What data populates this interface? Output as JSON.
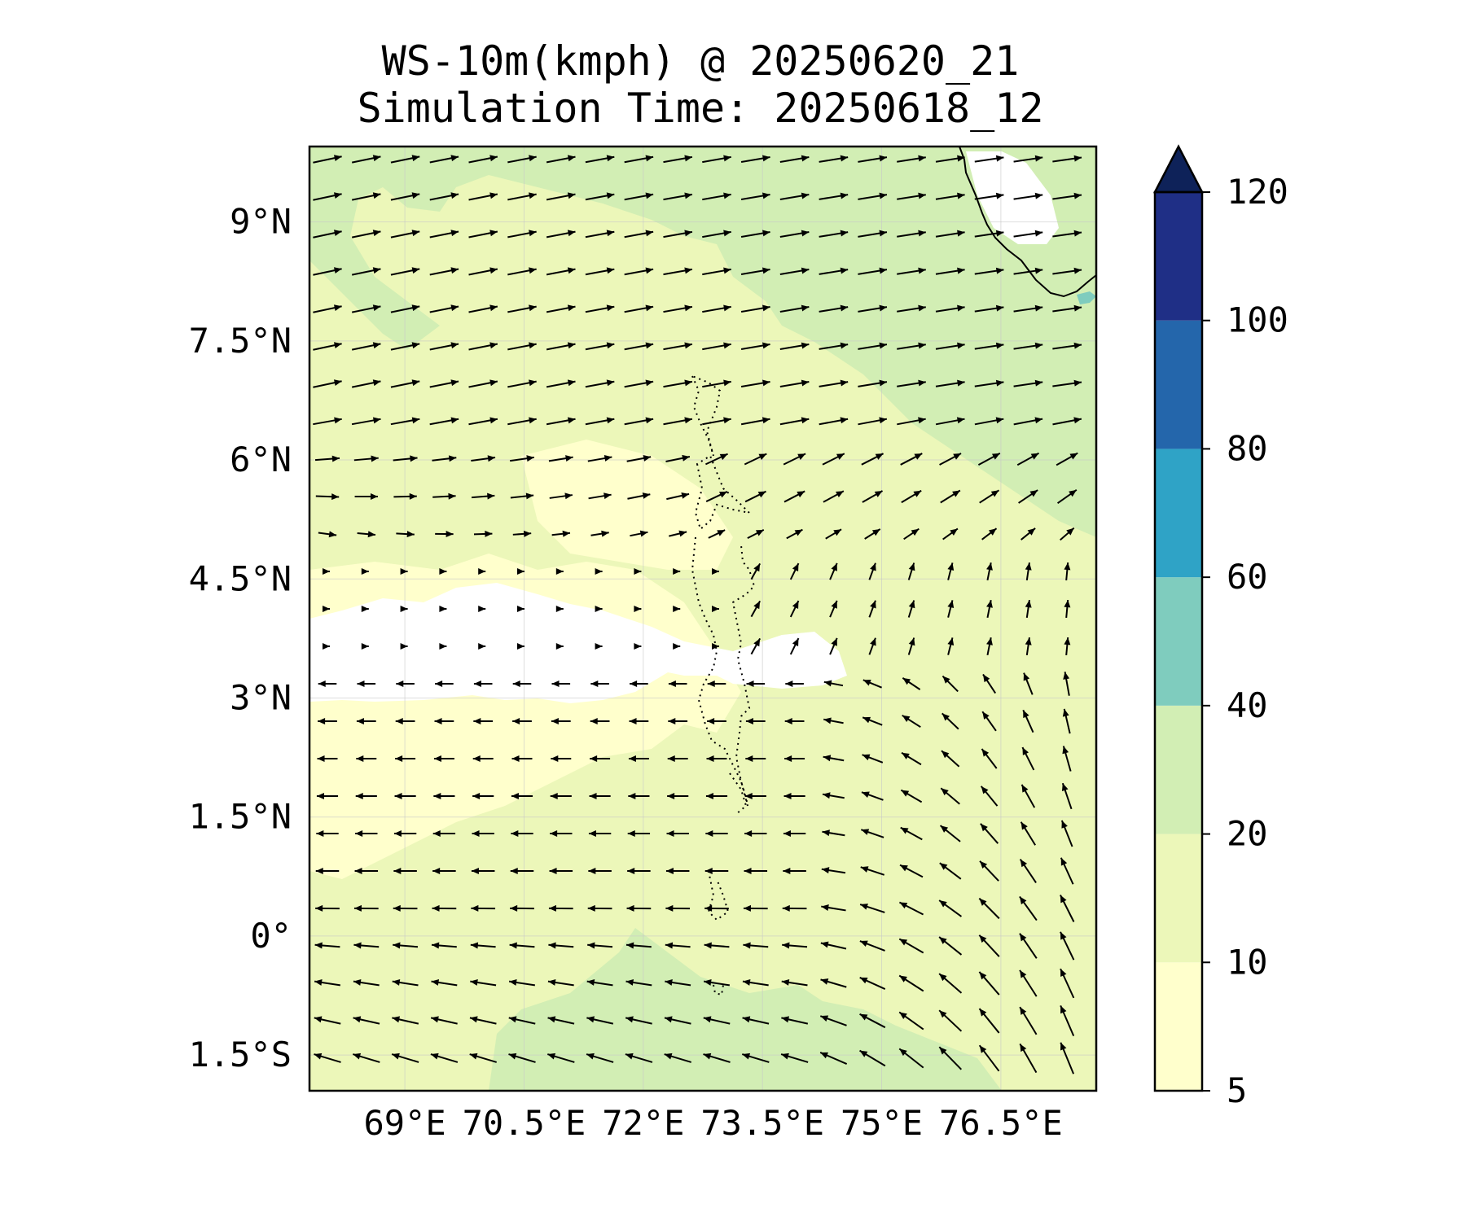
{
  "title": {
    "line1": "WS-10m(kmph) @ 20250620_21",
    "line2": "Simulation Time: 20250618_12"
  },
  "map": {
    "lon_range": [
      67.8,
      77.7
    ],
    "lat_range": [
      -1.95,
      9.95
    ],
    "lon_ticks": [
      {
        "value": 69.0,
        "label": "69°E"
      },
      {
        "value": 70.5,
        "label": "70.5°E"
      },
      {
        "value": 72.0,
        "label": "72°E"
      },
      {
        "value": 73.5,
        "label": "73.5°E"
      },
      {
        "value": 75.0,
        "label": "75°E"
      },
      {
        "value": 76.5,
        "label": "76.5°E"
      }
    ],
    "lat_ticks": [
      {
        "value": 9.0,
        "label": "9°N"
      },
      {
        "value": 7.5,
        "label": "7.5°N"
      },
      {
        "value": 6.0,
        "label": "6°N"
      },
      {
        "value": 4.5,
        "label": "4.5°N"
      },
      {
        "value": 3.0,
        "label": "3°N"
      },
      {
        "value": 1.5,
        "label": "1.5°N"
      },
      {
        "value": 0.0,
        "label": "0°"
      },
      {
        "value": -1.5,
        "label": "1.5°S"
      }
    ],
    "gridlines": true,
    "field_background": "#ecf7b9",
    "wind_field": {
      "cols": 20,
      "rows": 25,
      "description_regions": "westerly north of ~4.5°N, calm near 3-4°N, southeasterly south of 3°N, southerly east near 3°N 76°E"
    }
  },
  "colorbar": {
    "levels": [
      5,
      10,
      20,
      40,
      60,
      80,
      100,
      120
    ],
    "tick_labels": [
      "5",
      "10",
      "20",
      "40",
      "60",
      "80",
      "100",
      "120"
    ],
    "colors": [
      "#ffffcc",
      "#ecf7b9",
      "#d2eeb4",
      "#7fccbe",
      "#2fa3c6",
      "#2466ab",
      "#1f2f86"
    ],
    "extend_color": "#0e2259",
    "extend": "max"
  }
}
